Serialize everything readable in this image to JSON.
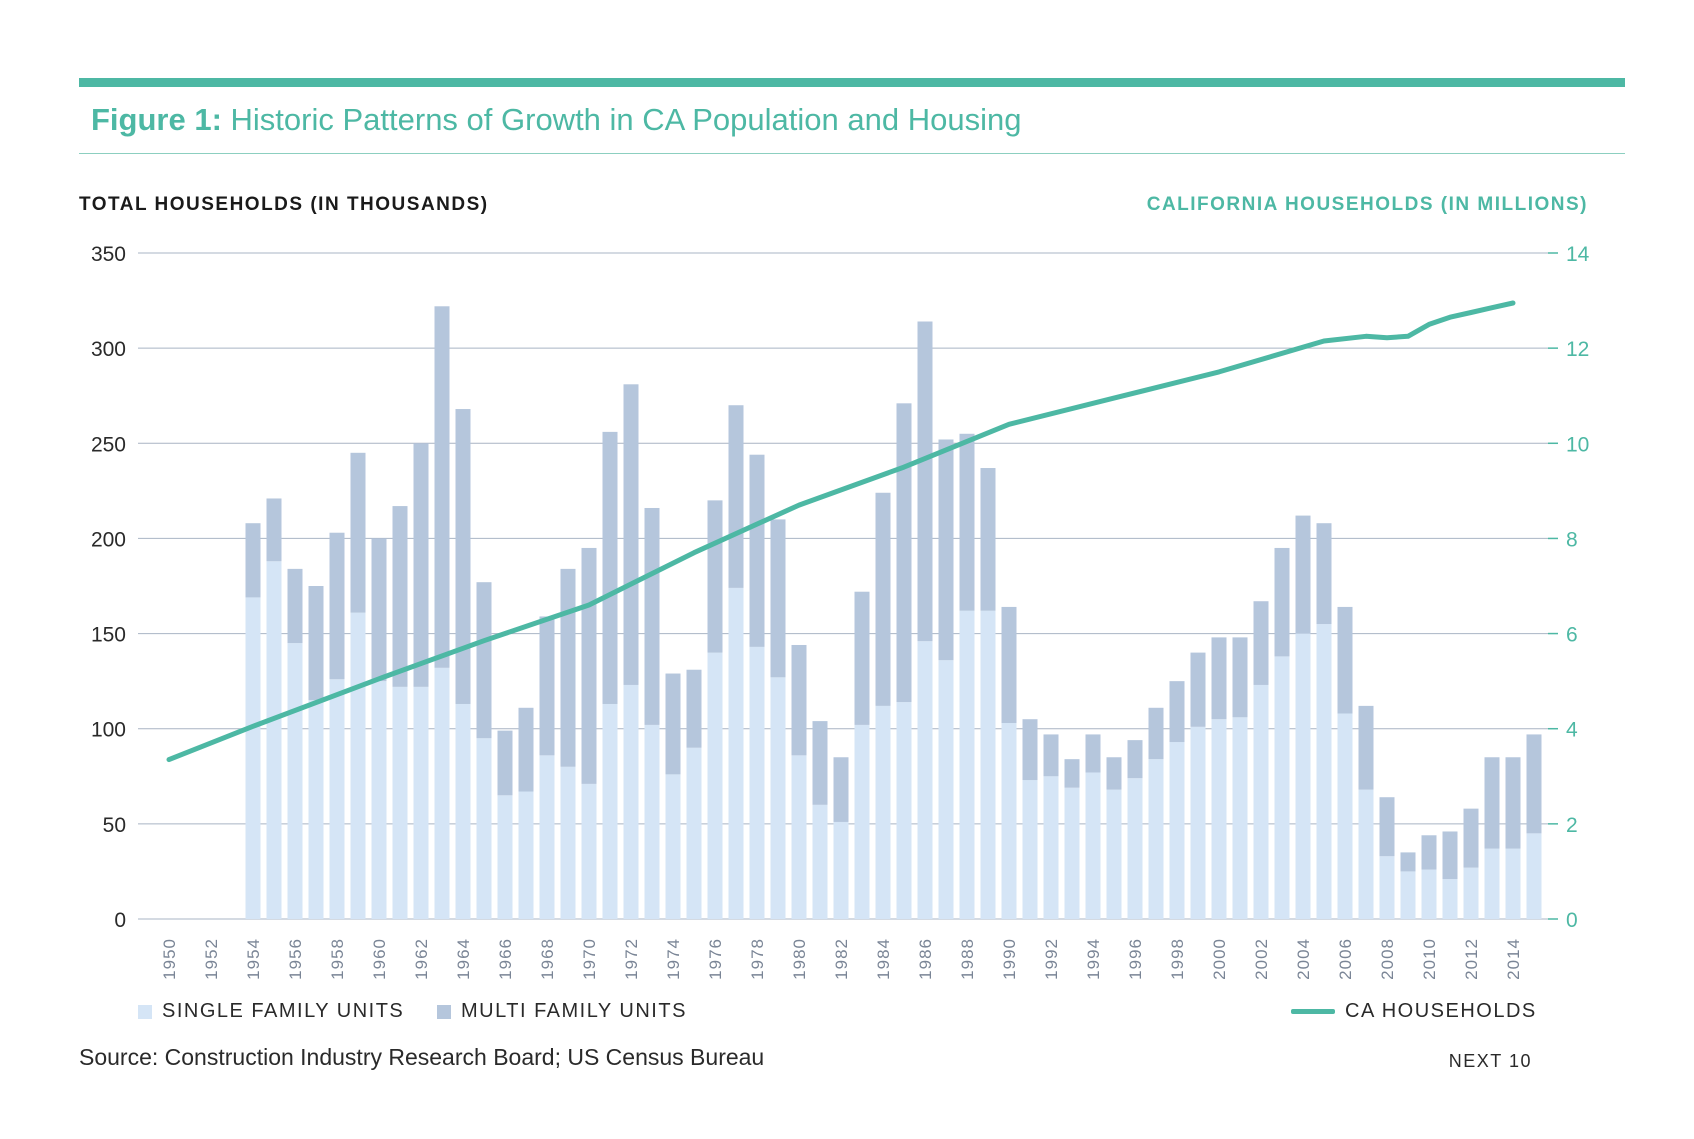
{
  "header": {
    "figure_label": "Figure 1:",
    "title": "Historic Patterns of Growth in CA Population and Housing"
  },
  "axis_titles": {
    "left": "TOTAL HOUSEHOLDS (IN THOUSANDS)",
    "right": "CALIFORNIA HOUSEHOLDS (IN MILLIONS)"
  },
  "legend": {
    "single": "SINGLE FAMILY UNITS",
    "multi": "MULTI FAMILY UNITS",
    "households": "CA HOUSEHOLDS"
  },
  "source": "Source: Construction Industry Research Board; US Census Bureau",
  "brand": "NEXT 10",
  "colors": {
    "accent": "#4db8a4",
    "single_family": "#d5e5f6",
    "multi_family": "#b5c6dc",
    "gridline": "#a9b4c4"
  },
  "chart_data": {
    "type": "bar",
    "stacked": true,
    "x": [
      1950,
      1951,
      1952,
      1953,
      1954,
      1955,
      1956,
      1957,
      1958,
      1959,
      1960,
      1961,
      1962,
      1963,
      1964,
      1965,
      1966,
      1967,
      1968,
      1969,
      1970,
      1971,
      1972,
      1973,
      1974,
      1975,
      1976,
      1977,
      1978,
      1979,
      1980,
      1981,
      1982,
      1983,
      1984,
      1985,
      1986,
      1987,
      1988,
      1989,
      1990,
      1991,
      1992,
      1993,
      1994,
      1995,
      1996,
      1997,
      1998,
      1999,
      2000,
      2001,
      2002,
      2003,
      2004,
      2005,
      2006,
      2007,
      2008,
      2009,
      2010,
      2011,
      2012,
      2013,
      2014,
      2015
    ],
    "x_tick_labels": [
      "1950",
      "1952",
      "1954",
      "1956",
      "1958",
      "1960",
      "1962",
      "1964",
      "1966",
      "1968",
      "1970",
      "1972",
      "1974",
      "1976",
      "1978",
      "1980",
      "1982",
      "1984",
      "1986",
      "1988",
      "1990",
      "1992",
      "1994",
      "1996",
      "1998",
      "2000",
      "2002",
      "2004",
      "2006",
      "2008",
      "2010",
      "2012",
      "2014"
    ],
    "series": [
      {
        "name": "SINGLE FAMILY UNITS",
        "axis": "left",
        "values": [
          0,
          0,
          0,
          0,
          169,
          188,
          145,
          115,
          126,
          161,
          125,
          122,
          122,
          132,
          113,
          95,
          65,
          67,
          86,
          80,
          71,
          113,
          123,
          102,
          76,
          90,
          140,
          174,
          143,
          127,
          86,
          60,
          51,
          102,
          112,
          114,
          146,
          136,
          162,
          162,
          103,
          73,
          75,
          69,
          77,
          68,
          74,
          84,
          93,
          101,
          105,
          106,
          123,
          138,
          150,
          155,
          108,
          68,
          33,
          25,
          26,
          21,
          27,
          37,
          37,
          45
        ]
      },
      {
        "name": "MULTI FAMILY UNITS",
        "axis": "left",
        "values": [
          0,
          0,
          0,
          0,
          39,
          33,
          39,
          60,
          77,
          84,
          75,
          95,
          128,
          190,
          155,
          82,
          34,
          44,
          73,
          104,
          124,
          143,
          158,
          114,
          53,
          41,
          80,
          96,
          101,
          83,
          58,
          44,
          34,
          70,
          112,
          157,
          168,
          116,
          93,
          75,
          61,
          32,
          22,
          15,
          20,
          17,
          20,
          27,
          32,
          39,
          43,
          42,
          44,
          57,
          62,
          53,
          56,
          44,
          31,
          10,
          18,
          25,
          31,
          48,
          48,
          52
        ]
      },
      {
        "name": "CA HOUSEHOLDS",
        "axis": "right",
        "type": "line",
        "x": [
          1950,
          1954,
          1960,
          1965,
          1970,
          1975,
          1980,
          1985,
          1990,
          1995,
          2000,
          2005,
          2007,
          2008,
          2009,
          2010,
          2011,
          2012,
          2013,
          2014
        ],
        "values": [
          3.35,
          4.05,
          5.05,
          5.85,
          6.6,
          7.7,
          8.7,
          9.5,
          10.4,
          10.95,
          11.5,
          12.15,
          12.25,
          12.22,
          12.25,
          12.5,
          12.65,
          12.75,
          12.85,
          12.95
        ]
      }
    ],
    "title": "Historic Patterns of Growth in CA Population and Housing",
    "ylabel": "TOTAL HOUSEHOLDS (IN THOUSANDS)",
    "y2label": "CALIFORNIA HOUSEHOLDS (IN MILLIONS)",
    "ylim": [
      0,
      350
    ],
    "y_ticks": [
      0,
      50,
      100,
      150,
      200,
      250,
      300,
      350
    ],
    "y2lim": [
      0,
      14
    ],
    "y2_ticks": [
      0,
      2,
      4,
      6,
      8,
      10,
      12,
      14
    ],
    "grid": true,
    "legend_position": "bottom"
  }
}
